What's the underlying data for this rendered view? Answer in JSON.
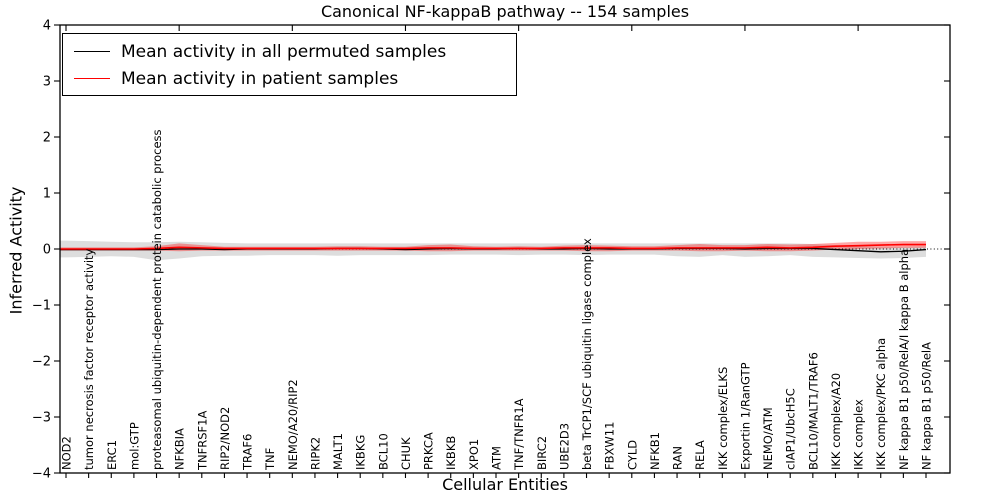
{
  "title": "Canonical NF-kappaB pathway -- 154 samples",
  "legend": {
    "items": [
      {
        "label": "Mean activity in all permuted samples",
        "color": "#000000"
      },
      {
        "label": "Mean activity in patient samples",
        "color": "#ff0000"
      }
    ]
  },
  "chart_data": {
    "type": "line",
    "title": "Canonical NF-kappaB pathway -- 154 samples",
    "xlabel": "Cellular Entities",
    "ylabel": "Inferred Activity",
    "ylim": [
      -4,
      4
    ],
    "yticks": [
      {
        "v": 4,
        "label": "4"
      },
      {
        "v": 3,
        "label": "3"
      },
      {
        "v": 2,
        "label": "2"
      },
      {
        "v": 1,
        "label": "1"
      },
      {
        "v": 0,
        "label": "0"
      },
      {
        "v": -1,
        "label": "−1"
      },
      {
        "v": -2,
        "label": "−2"
      },
      {
        "v": -3,
        "label": "−3"
      },
      {
        "v": -4,
        "label": "−4"
      }
    ],
    "grid": false,
    "legend_position": "upper left",
    "zero_line": {
      "style": "dotted",
      "color": "#000000",
      "y": 0
    },
    "categories": [
      "NOD2",
      "tumor necrosis factor receptor activity",
      "ERC1",
      "mol:GTP",
      "proteasomal ubiquitin-dependent protein catabolic process",
      "NFKBIA",
      "TNFRSF1A",
      "RIP2/NOD2",
      "TRAF6",
      "TNF",
      "NEMO/A20/RIP2",
      "RIPK2",
      "MALT1",
      "IKBKG",
      "BCL10",
      "CHUK",
      "PRKCA",
      "IKBKB",
      "XPO1",
      "ATM",
      "TNF/TNFR1A",
      "BIRC2",
      "UBE2D3",
      "beta TrCP1/SCF ubiquitin ligase complex",
      "FBXW11",
      "CYLD",
      "NFKB1",
      "RAN",
      "RELA",
      "IKK complex/ELKS",
      "Exportin 1/RanGTP",
      "NEMO/ATM",
      "cIAP1/UbcH5C",
      "BCL10/MALT1/TRAF6",
      "IKK complex/A20",
      "IKK complex",
      "IKK complex/PKC alpha",
      "NF kappa B1 p50/RelA/I kappa B alpha",
      "NF kappa B1 p50/RelA"
    ],
    "series": [
      {
        "name": "Mean activity in all permuted samples",
        "color": "#000000",
        "width": 1.3,
        "values": [
          -0.01,
          -0.01,
          -0.01,
          -0.01,
          -0.01,
          0.0,
          0.0,
          -0.01,
          0.0,
          0.0,
          0.0,
          0.0,
          0.01,
          0.01,
          0.0,
          -0.01,
          0.0,
          0.01,
          0.0,
          0.0,
          0.01,
          0.0,
          0.0,
          0.01,
          0.0,
          0.0,
          0.0,
          0.01,
          0.01,
          0.01,
          0.0,
          0.01,
          0.01,
          0.01,
          -0.01,
          -0.03,
          -0.05,
          -0.04,
          -0.01
        ]
      },
      {
        "name": "Mean activity in patient samples",
        "color": "#ff0000",
        "width": 1.6,
        "values": [
          0.0,
          0.0,
          0.0,
          0.0,
          0.01,
          0.03,
          0.02,
          0.01,
          0.01,
          0.01,
          0.01,
          0.01,
          0.01,
          0.01,
          0.01,
          0.01,
          0.02,
          0.02,
          0.01,
          0.01,
          0.01,
          0.01,
          0.02,
          0.02,
          0.02,
          0.01,
          0.01,
          0.02,
          0.02,
          0.02,
          0.02,
          0.03,
          0.02,
          0.03,
          0.05,
          0.06,
          0.07,
          0.08,
          0.08
        ]
      }
    ],
    "bands": [
      {
        "name": "permuted-range",
        "color": "rgba(150,150,150,0.32)",
        "upper": [
          0.15,
          0.14,
          0.13,
          0.12,
          0.12,
          0.13,
          0.12,
          0.11,
          0.1,
          0.1,
          0.1,
          0.1,
          0.1,
          0.1,
          0.1,
          0.1,
          0.1,
          0.1,
          0.1,
          0.1,
          0.1,
          0.1,
          0.1,
          0.1,
          0.1,
          0.1,
          0.1,
          0.1,
          0.1,
          0.1,
          0.1,
          0.1,
          0.1,
          0.09,
          0.07,
          0.05,
          0.04,
          0.04,
          0.05
        ],
        "lower": [
          -0.15,
          -0.14,
          -0.13,
          -0.14,
          -0.2,
          -0.17,
          -0.13,
          -0.12,
          -0.12,
          -0.11,
          -0.11,
          -0.11,
          -0.12,
          -0.11,
          -0.11,
          -0.11,
          -0.11,
          -0.1,
          -0.1,
          -0.1,
          -0.11,
          -0.1,
          -0.1,
          -0.11,
          -0.1,
          -0.1,
          -0.1,
          -0.13,
          -0.14,
          -0.11,
          -0.14,
          -0.13,
          -0.11,
          -0.14,
          -0.15,
          -0.16,
          -0.17,
          -0.16,
          -0.14
        ]
      },
      {
        "name": "patient-range",
        "color": "rgba(255,0,0,0.35)",
        "upper": [
          0.03,
          0.03,
          0.03,
          0.03,
          0.05,
          0.1,
          0.07,
          0.04,
          0.04,
          0.04,
          0.04,
          0.04,
          0.05,
          0.05,
          0.04,
          0.04,
          0.07,
          0.08,
          0.05,
          0.04,
          0.05,
          0.04,
          0.06,
          0.07,
          0.06,
          0.05,
          0.05,
          0.07,
          0.09,
          0.07,
          0.07,
          0.09,
          0.08,
          0.09,
          0.11,
          0.13,
          0.13,
          0.14,
          0.14
        ],
        "lower": [
          -0.03,
          -0.03,
          -0.03,
          -0.03,
          -0.03,
          -0.04,
          -0.03,
          -0.03,
          -0.03,
          -0.03,
          -0.03,
          -0.03,
          -0.03,
          -0.03,
          -0.03,
          -0.03,
          -0.04,
          -0.04,
          -0.03,
          -0.03,
          -0.03,
          -0.03,
          -0.03,
          -0.04,
          -0.04,
          -0.03,
          -0.03,
          -0.03,
          -0.04,
          -0.04,
          -0.03,
          -0.04,
          -0.04,
          -0.03,
          -0.01,
          0.0,
          0.01,
          0.02,
          0.02
        ]
      }
    ]
  }
}
